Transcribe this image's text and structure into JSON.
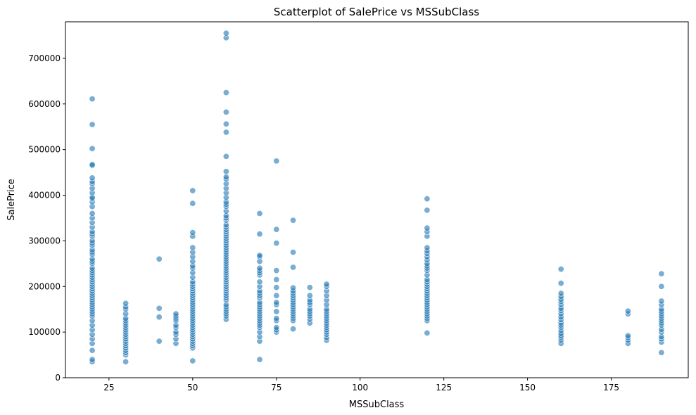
{
  "chart_data": {
    "type": "scatter",
    "title": "Scatterplot of SalePrice vs MSSubClass",
    "xlabel": "MSSubClass",
    "ylabel": "SalePrice",
    "xlim": [
      12,
      198
    ],
    "ylim": [
      0,
      780000
    ],
    "xticks": [
      25,
      50,
      75,
      100,
      125,
      150,
      175
    ],
    "yticks": [
      0,
      100000,
      200000,
      300000,
      400000,
      500000,
      600000,
      700000
    ],
    "grid": false,
    "point_color": "#1f77b4",
    "point_opacity": 0.6,
    "groups": [
      {
        "x": 20,
        "y": [
          35000,
          40000,
          60000,
          75000,
          85000,
          95000,
          105000,
          115000,
          125000,
          135000,
          140000,
          145000,
          150000,
          155000,
          160000,
          165000,
          170000,
          175000,
          180000,
          185000,
          190000,
          195000,
          200000,
          205000,
          210000,
          215000,
          220000,
          225000,
          230000,
          235000,
          240000,
          250000,
          255000,
          260000,
          270000,
          275000,
          280000,
          290000,
          295000,
          300000,
          310000,
          315000,
          320000,
          330000,
          340000,
          350000,
          360000,
          375000,
          385000,
          392000,
          395000,
          405000,
          415000,
          425000,
          430000,
          438000,
          465000,
          467000,
          502000,
          555000,
          611000
        ]
      },
      {
        "x": 30,
        "y": [
          35000,
          50000,
          55000,
          60000,
          65000,
          70000,
          75000,
          80000,
          85000,
          90000,
          95000,
          100000,
          105000,
          110000,
          115000,
          120000,
          125000,
          130000,
          140000,
          150000,
          155000,
          163000
        ]
      },
      {
        "x": 40,
        "y": [
          80000,
          133000,
          152000,
          260000
        ]
      },
      {
        "x": 45,
        "y": [
          75000,
          85000,
          95000,
          100000,
          110000,
          115000,
          125000,
          130000,
          135000,
          140000
        ]
      },
      {
        "x": 50,
        "y": [
          37000,
          65000,
          70000,
          75000,
          80000,
          85000,
          90000,
          95000,
          100000,
          105000,
          110000,
          115000,
          120000,
          125000,
          130000,
          135000,
          140000,
          145000,
          150000,
          155000,
          160000,
          165000,
          170000,
          175000,
          180000,
          185000,
          190000,
          195000,
          200000,
          205000,
          210000,
          220000,
          230000,
          240000,
          245000,
          255000,
          265000,
          275000,
          285000,
          310000,
          318000,
          382000,
          410000
        ]
      },
      {
        "x": 60,
        "y": [
          128000,
          135000,
          140000,
          145000,
          150000,
          155000,
          160000,
          170000,
          175000,
          180000,
          185000,
          190000,
          195000,
          200000,
          205000,
          210000,
          215000,
          220000,
          225000,
          230000,
          235000,
          240000,
          245000,
          250000,
          255000,
          260000,
          265000,
          270000,
          275000,
          280000,
          285000,
          290000,
          295000,
          300000,
          305000,
          310000,
          315000,
          320000,
          325000,
          330000,
          335000,
          345000,
          350000,
          355000,
          365000,
          375000,
          380000,
          385000,
          395000,
          405000,
          415000,
          425000,
          435000,
          440000,
          452000,
          485000,
          538000,
          556000,
          582000,
          625000,
          745000,
          755000
        ]
      },
      {
        "x": 70,
        "y": [
          40000,
          80000,
          90000,
          100000,
          110000,
          115000,
          120000,
          125000,
          130000,
          135000,
          140000,
          145000,
          150000,
          155000,
          160000,
          165000,
          175000,
          180000,
          185000,
          190000,
          200000,
          210000,
          225000,
          230000,
          235000,
          240000,
          255000,
          265000,
          268000,
          315000,
          360000
        ]
      },
      {
        "x": 75,
        "y": [
          100000,
          105000,
          110000,
          125000,
          130000,
          145000,
          160000,
          165000,
          180000,
          198000,
          215000,
          235000,
          295000,
          325000,
          475000
        ]
      },
      {
        "x": 80,
        "y": [
          107000,
          125000,
          130000,
          135000,
          140000,
          145000,
          150000,
          155000,
          160000,
          165000,
          170000,
          175000,
          180000,
          185000,
          190000,
          197000,
          242000,
          275000,
          345000
        ]
      },
      {
        "x": 85,
        "y": [
          120000,
          128000,
          135000,
          140000,
          145000,
          150000,
          160000,
          165000,
          170000,
          180000,
          198000
        ]
      },
      {
        "x": 90,
        "y": [
          82000,
          88000,
          95000,
          100000,
          105000,
          110000,
          115000,
          120000,
          125000,
          130000,
          135000,
          140000,
          145000,
          150000,
          160000,
          170000,
          180000,
          190000,
          200000,
          205000
        ]
      },
      {
        "x": 120,
        "y": [
          98000,
          125000,
          130000,
          135000,
          140000,
          145000,
          150000,
          155000,
          160000,
          165000,
          170000,
          175000,
          180000,
          185000,
          190000,
          195000,
          200000,
          205000,
          210000,
          215000,
          225000,
          235000,
          240000,
          245000,
          250000,
          258000,
          265000,
          272000,
          278000,
          285000,
          310000,
          320000,
          328000,
          367000,
          392000
        ]
      },
      {
        "x": 160,
        "y": [
          75000,
          82000,
          88000,
          92000,
          97000,
          103000,
          110000,
          115000,
          120000,
          127000,
          133000,
          140000,
          147000,
          152000,
          160000,
          167000,
          172000,
          178000,
          185000,
          207000,
          238000
        ]
      },
      {
        "x": 180,
        "y": [
          75000,
          82000,
          88000,
          92000,
          140000,
          146000
        ]
      },
      {
        "x": 190,
        "y": [
          55000,
          78000,
          85000,
          90000,
          100000,
          106000,
          115000,
          120000,
          125000,
          130000,
          135000,
          140000,
          145000,
          150000,
          160000,
          168000,
          200000,
          228000
        ]
      }
    ]
  }
}
